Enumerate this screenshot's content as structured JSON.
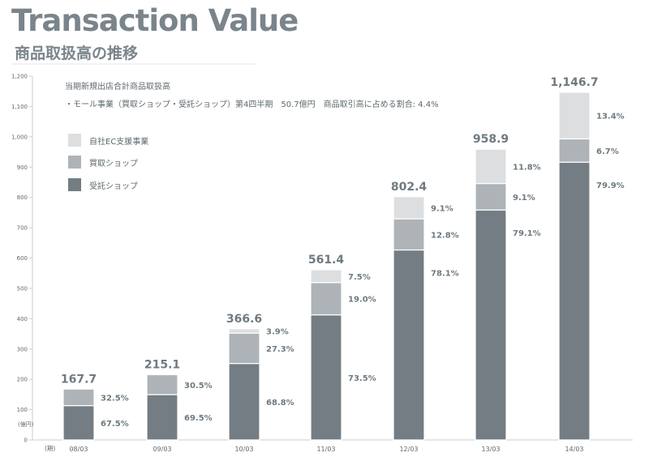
{
  "header": {
    "title": "Transaction Value",
    "subtitle": "商品取扱高の推移"
  },
  "notes": {
    "line1": "当期新規出店合計商品取扱高",
    "line2": "・モール事業（買取ショップ・受託ショップ）第4四半期　50.7億円　商品取引高に占める割合: 4.4%"
  },
  "legend": [
    {
      "label": "自社EC支援事業",
      "color": "#dcdee0"
    },
    {
      "label": "買取ショップ",
      "color": "#aeb3b7"
    },
    {
      "label": "受託ショップ",
      "color": "#737d83"
    }
  ],
  "chart_data": {
    "type": "bar",
    "stacked": true,
    "categories": [
      "08/03",
      "09/03",
      "10/03",
      "11/03",
      "12/03",
      "13/03",
      "14/03"
    ],
    "totals": [
      167.7,
      215.1,
      366.6,
      561.4,
      802.4,
      958.9,
      1146.7
    ],
    "total_labels": [
      "167.7",
      "215.1",
      "366.6",
      "561.4",
      "802.4",
      "958.9",
      "1,146.7"
    ],
    "series": [
      {
        "name": "受託ショップ",
        "color": "#737d83",
        "pct": [
          67.5,
          69.5,
          68.8,
          73.5,
          78.1,
          79.1,
          79.9
        ],
        "labels": [
          "67.5%",
          "69.5%",
          "68.8%",
          "73.5%",
          "78.1%",
          "79.1%",
          "79.9%"
        ]
      },
      {
        "name": "買取ショップ",
        "color": "#aeb3b7",
        "pct": [
          32.5,
          30.5,
          27.3,
          19.0,
          12.8,
          9.1,
          6.7
        ],
        "labels": [
          "32.5%",
          "30.5%",
          "27.3%",
          "19.0%",
          "12.8%",
          "9.1%",
          "6.7%"
        ]
      },
      {
        "name": "自社EC支援事業",
        "color": "#dcdee0",
        "pct": [
          0,
          0,
          3.9,
          7.5,
          9.1,
          11.8,
          13.4
        ],
        "labels": [
          "",
          "",
          "3.9%",
          "7.5%",
          "9.1%",
          "11.8%",
          "13.4%"
        ]
      }
    ],
    "y_ticks": [
      0,
      100,
      200,
      300,
      400,
      500,
      600,
      700,
      800,
      900,
      1000,
      1100,
      1200
    ],
    "y_tick_labels": [
      "0",
      "100",
      "200",
      "300",
      "400",
      "500",
      "600",
      "700",
      "800",
      "900",
      "1,000",
      "1,100",
      "1,200"
    ],
    "ylim": [
      0,
      1200
    ],
    "ylabel": "(億円)",
    "xlabel": "(期)"
  }
}
